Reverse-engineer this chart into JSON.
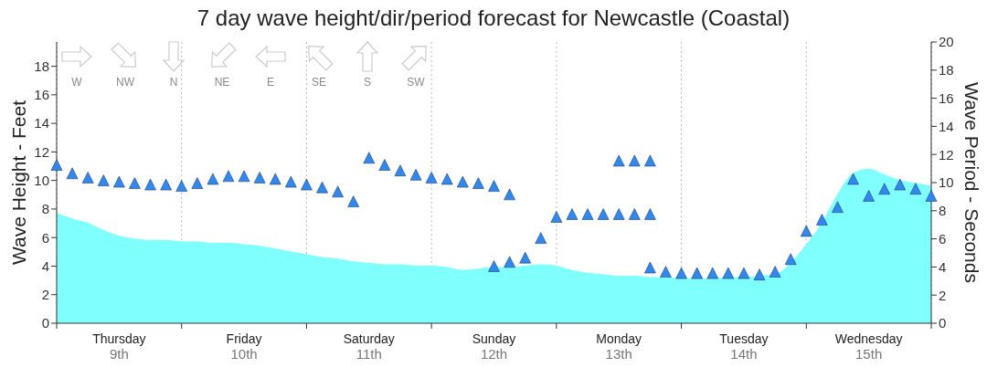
{
  "chart_data": {
    "type": "area",
    "title": "7 day wave height/dir/period forecast for Newcastle (Coastal)",
    "ylabel": "Wave Height - Feet",
    "y2label": "Wave Period - Seconds",
    "categories": [
      null,
      null,
      null,
      null,
      "Thursday\n9th",
      null,
      null,
      null,
      null,
      null,
      null,
      null,
      "Friday\n10th",
      null,
      null,
      null,
      null,
      null,
      null,
      null,
      "Saturday\n11th",
      null,
      null,
      null,
      null,
      null,
      null,
      null,
      "Sunday\n12th",
      null,
      null,
      null,
      null,
      null,
      null,
      null,
      "Monday\n13th",
      null,
      null,
      null,
      null,
      null,
      null,
      null,
      "Tuesday\n14th",
      null,
      null,
      null,
      null,
      null,
      null,
      null,
      "Wednesday\n15th",
      null,
      null,
      null,
      null
    ],
    "ylim": [
      0,
      19.7
    ],
    "yticks": [
      0,
      2,
      4,
      6,
      8,
      10,
      12,
      14,
      16,
      18
    ],
    "y2lim": [
      0,
      20
    ],
    "y2ticks": [
      0,
      2,
      4,
      6,
      8,
      10,
      12,
      14,
      16,
      18,
      20
    ],
    "grid": true,
    "series": [
      {
        "color": "#80ffff",
        "values": [
          7.7,
          7.3,
          7.0,
          6.5,
          6.1,
          5.9,
          5.8,
          5.8,
          5.7,
          5.7,
          5.6,
          5.6,
          5.5,
          5.4,
          5.2,
          5.0,
          4.8,
          4.6,
          4.5,
          4.3,
          4.2,
          4.1,
          4.1,
          4.0,
          4.0,
          3.9,
          3.7,
          3.8,
          3.9,
          3.9,
          4.0,
          4.1,
          4.0,
          3.7,
          3.5,
          3.4,
          3.3,
          3.3,
          3.2,
          3.2,
          3.1,
          3.1,
          3.1,
          3.2,
          3.2,
          3.3,
          3.4,
          4.2,
          5.5,
          7.0,
          9.0,
          10.5,
          10.8,
          10.4,
          10.0,
          9.8,
          9.6
        ]
      },
      {
        "type": "scatter",
        "axis": "y2",
        "color": "#3388ee",
        "marker": "triangle",
        "values": [
          11.2,
          10.6,
          10.3,
          10.1,
          10.0,
          9.9,
          9.8,
          9.8,
          9.7,
          9.9,
          10.2,
          10.4,
          10.4,
          10.3,
          10.2,
          10.0,
          9.8,
          9.6,
          9.3,
          8.6,
          11.7,
          11.2,
          10.8,
          10.5,
          10.3,
          10.2,
          10.0,
          9.9,
          9.7,
          9.1,
          4.6,
          6.0,
          7.5,
          7.7,
          7.7,
          7.7,
          7.7,
          7.7,
          7.7,
          3.6,
          3.5,
          3.5,
          3.5,
          3.5,
          3.5,
          3.4,
          3.6,
          4.5,
          6.5,
          7.3,
          8.2,
          10.2,
          9.0,
          9.5,
          9.8,
          9.5,
          9.0
        ]
      },
      {
        "type": "scatter",
        "axis": "y2",
        "color": "#3388ee",
        "marker": "triangle",
        "values": [
          null,
          null,
          null,
          null,
          null,
          null,
          null,
          null,
          null,
          null,
          null,
          null,
          null,
          null,
          null,
          null,
          null,
          null,
          null,
          null,
          null,
          null,
          null,
          null,
          null,
          null,
          null,
          null,
          4.0,
          4.3,
          null,
          null,
          null,
          null,
          null,
          null,
          11.5,
          11.5,
          11.5,
          null,
          null,
          null,
          null,
          null,
          null,
          null,
          null,
          null,
          null,
          null,
          null,
          null,
          null,
          null,
          null,
          null,
          null
        ]
      },
      {
        "type": "scatter",
        "axis": "y2",
        "color": "#3388ee",
        "marker": "triangle",
        "values": [
          null,
          null,
          null,
          null,
          null,
          null,
          null,
          null,
          null,
          null,
          null,
          null,
          null,
          null,
          null,
          null,
          null,
          null,
          null,
          null,
          null,
          null,
          null,
          null,
          null,
          null,
          null,
          null,
          null,
          null,
          null,
          null,
          null,
          null,
          null,
          null,
          null,
          null,
          3.9,
          null,
          null,
          null,
          null,
          null,
          null,
          null,
          null,
          null,
          null,
          null,
          null,
          null,
          null,
          null,
          null,
          null,
          null
        ]
      }
    ],
    "annotations": [
      "W",
      "NW",
      "N",
      "NE",
      "E",
      "SE",
      "S",
      "SW"
    ]
  }
}
